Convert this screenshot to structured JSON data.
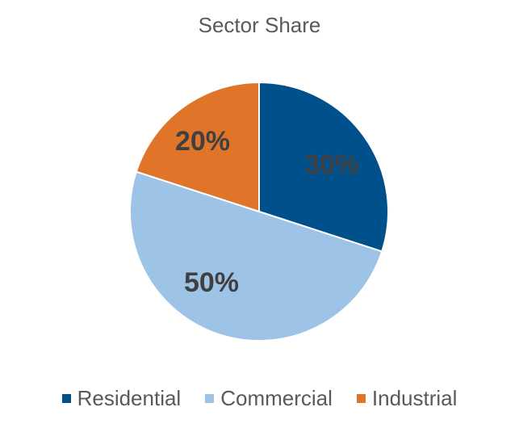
{
  "chart_data": {
    "type": "pie",
    "title": "Sector Share",
    "categories": [
      "Residential",
      "Commercial",
      "Industrial"
    ],
    "values": [
      30,
      50,
      20
    ],
    "labels": [
      "30%",
      "50%",
      "20%"
    ],
    "colors": [
      "#00508C",
      "#9DC3E6",
      "#E07428"
    ],
    "start_angle": "12 o'clock",
    "direction": "clockwise",
    "legend_position": "bottom"
  }
}
